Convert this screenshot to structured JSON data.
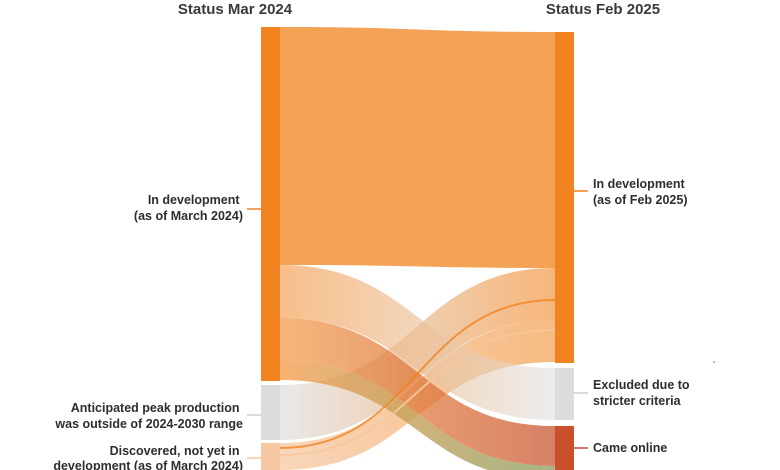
{
  "columns": {
    "left_title": "Status Mar 2024",
    "right_title": "Status Feb 2025"
  },
  "nodes": {
    "left_in_development": [
      "In development",
      "(as of March 2024)"
    ],
    "left_outside_range": [
      "Anticipated peak production",
      "was outside of 2024-2030 range"
    ],
    "left_discovered": [
      "Discovered, not yet in",
      "development (as of March 2024)"
    ],
    "right_in_development": [
      "In development",
      "(as of Feb 2025)"
    ],
    "right_excluded": [
      "Excluded due to",
      "stricter criteria"
    ],
    "right_came_online": [
      "Came online"
    ]
  },
  "colors": {
    "orange_node": "#f08220",
    "orange_flow": "#f39a47",
    "gray_node": "#dcdcdc",
    "gray_flow": "#e2e2e2",
    "peach_node": "#f6c7a0",
    "red_node": "#c8502a",
    "red_flow": "#d0684a",
    "green_flow": "#8ea36a",
    "connector": "#f08220",
    "title": "#3a3a3a"
  }
}
